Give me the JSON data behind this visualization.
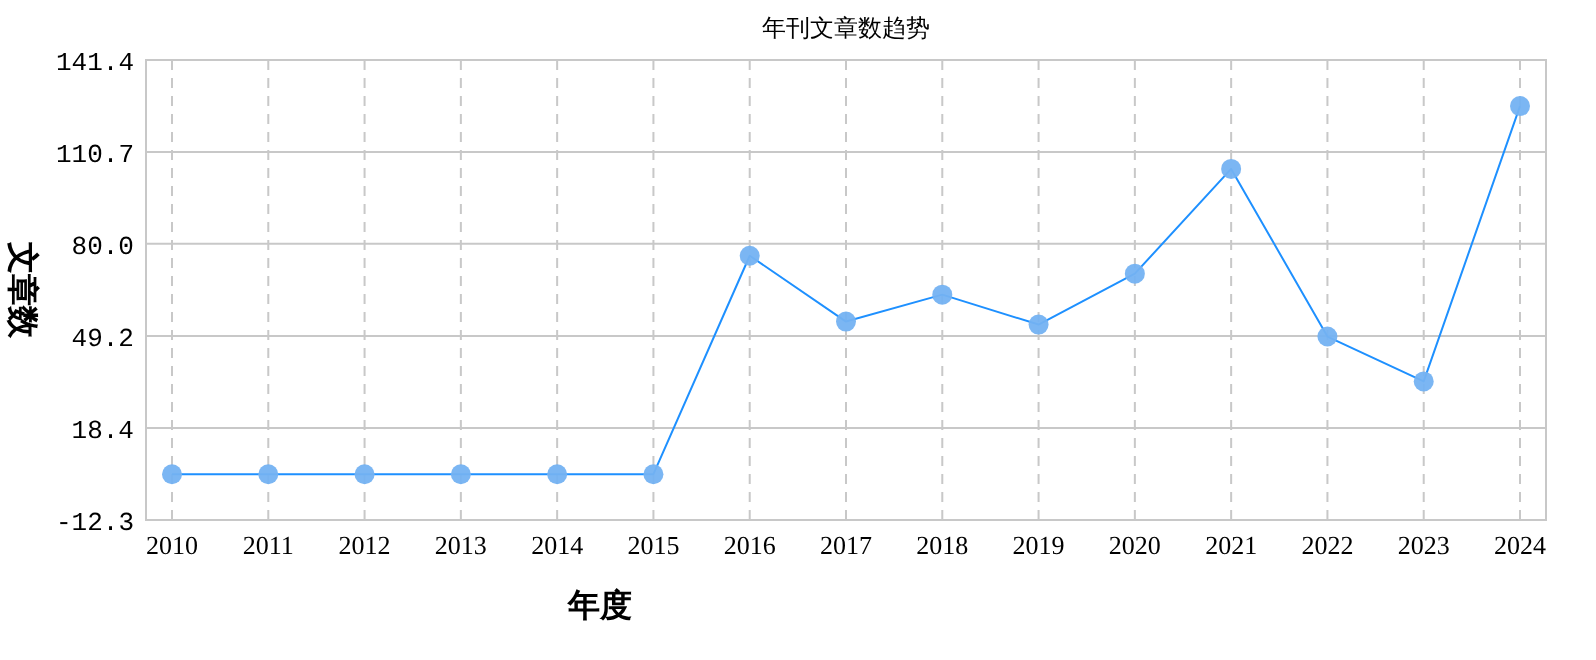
{
  "chart_data": {
    "type": "line",
    "title": "年刊文章数趋势",
    "xlabel": "年度",
    "ylabel": "文章数",
    "categories": [
      "2010",
      "2011",
      "2012",
      "2013",
      "2014",
      "2015",
      "2016",
      "2017",
      "2018",
      "2019",
      "2020",
      "2021",
      "2022",
      "2023",
      "2024"
    ],
    "series": [
      {
        "color": "#1e90ff",
        "values": [
          3,
          3,
          3,
          3,
          3,
          3,
          76,
          54,
          63,
          53,
          70,
          105,
          49,
          34,
          126
        ]
      }
    ],
    "ylim": [
      -12.3,
      141.4
    ],
    "yticks": [
      {
        "value": -12.3,
        "label": "-12.3"
      },
      {
        "value": 18.4,
        "label": "18.4"
      },
      {
        "value": 49.2,
        "label": "49.2"
      },
      {
        "value": 80.0,
        "label": "80.0"
      },
      {
        "value": 110.7,
        "label": "110.7"
      },
      {
        "value": 141.4,
        "label": "141.4"
      }
    ],
    "grid": true,
    "marker": "circle",
    "line_style": "solid"
  }
}
